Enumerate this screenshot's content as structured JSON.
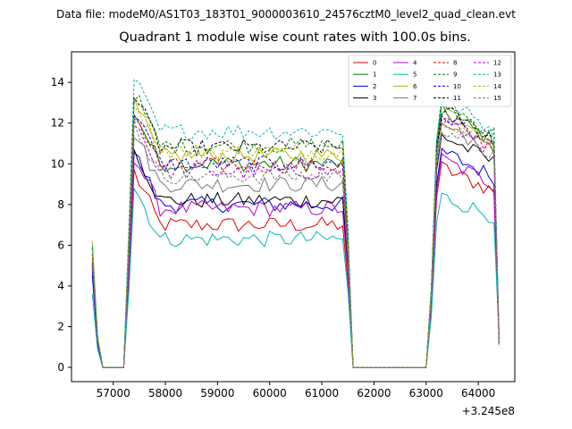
{
  "figure": {
    "suptitle": "Data file: modeM0/AS1T03_183T01_9000003610_24576cztM0_level2_quad_clean.evt",
    "title": "Quadrant 1 module wise count rates with 100.0s bins."
  },
  "chart_data": {
    "type": "line",
    "title": "Quadrant 1 module wise count rates with 100.0s bins.",
    "xlabel": "",
    "ylabel": "",
    "x_offset_label": "+3.245e8",
    "xlim": [
      56200,
      64700
    ],
    "ylim": [
      -0.7,
      15.5
    ],
    "xticks": [
      57000,
      58000,
      59000,
      60000,
      61000,
      62000,
      63000,
      64000
    ],
    "yticks": [
      0,
      2,
      4,
      6,
      8,
      10,
      12,
      14
    ],
    "legend_placement": "upper-right",
    "legend_columns": 4,
    "grid": false,
    "profile": {
      "x": [
        56600,
        56700,
        56800,
        57200,
        57300,
        57400,
        61400,
        61500,
        61600,
        62000,
        63000,
        63100,
        63200,
        63300,
        64300,
        64400
      ],
      "shape": [
        1.0,
        0.5,
        0.0,
        0.0,
        0.6,
        1.0,
        1.0,
        0.6,
        0.0,
        0.0,
        0.0,
        0.3,
        0.85,
        1.0,
        1.0,
        0.1
      ]
    },
    "series": [
      {
        "name": "0",
        "color": "#e00000",
        "dashed": false,
        "start": 5.6,
        "plateau1": 7.0,
        "plateau2": 9.8
      },
      {
        "name": "1",
        "color": "#007a00",
        "dashed": false,
        "start": 5.8,
        "plateau1": 10.0,
        "plateau2": 12.6
      },
      {
        "name": "2",
        "color": "#0000ee",
        "dashed": false,
        "start": 4.5,
        "plateau1": 8.0,
        "plateau2": 10.6
      },
      {
        "name": "3",
        "color": "#000000",
        "dashed": false,
        "start": 5.0,
        "plateau1": 8.2,
        "plateau2": 11.4
      },
      {
        "name": "4",
        "color": "#b000c8",
        "dashed": false,
        "start": 4.8,
        "plateau1": 7.8,
        "plateau2": 10.2
      },
      {
        "name": "5",
        "color": "#00b8b8",
        "dashed": false,
        "start": 3.6,
        "plateau1": 6.3,
        "plateau2": 8.4
      },
      {
        "name": "6",
        "color": "#b8b800",
        "dashed": false,
        "start": 6.2,
        "plateau1": 10.4,
        "plateau2": 12.8
      },
      {
        "name": "7",
        "color": "#7a7a7a",
        "dashed": false,
        "start": 5.2,
        "plateau1": 9.0,
        "plateau2": 12.0
      },
      {
        "name": "8",
        "color": "#e00000",
        "dashed": true,
        "start": 5.4,
        "plateau1": 9.9,
        "plateau2": 12.2
      },
      {
        "name": "9",
        "color": "#007a00",
        "dashed": true,
        "start": 5.9,
        "plateau1": 10.9,
        "plateau2": 13.0
      },
      {
        "name": "10",
        "color": "#0000ee",
        "dashed": true,
        "start": 4.6,
        "plateau1": 10.0,
        "plateau2": 12.4
      },
      {
        "name": "11",
        "color": "#000000",
        "dashed": true,
        "start": 5.1,
        "plateau1": 10.8,
        "plateau2": 12.7
      },
      {
        "name": "12",
        "color": "#b000c8",
        "dashed": true,
        "start": 5.0,
        "plateau1": 9.6,
        "plateau2": 12.1
      },
      {
        "name": "13",
        "color": "#00b8b8",
        "dashed": true,
        "start": 6.0,
        "plateau1": 11.6,
        "plateau2": 13.2
      },
      {
        "name": "14",
        "color": "#b8b800",
        "dashed": true,
        "start": 5.7,
        "plateau1": 10.6,
        "plateau2": 12.3
      },
      {
        "name": "15",
        "color": "#7a7a7a",
        "dashed": true,
        "start": 5.3,
        "plateau1": 9.4,
        "plateau2": 11.8
      }
    ]
  }
}
